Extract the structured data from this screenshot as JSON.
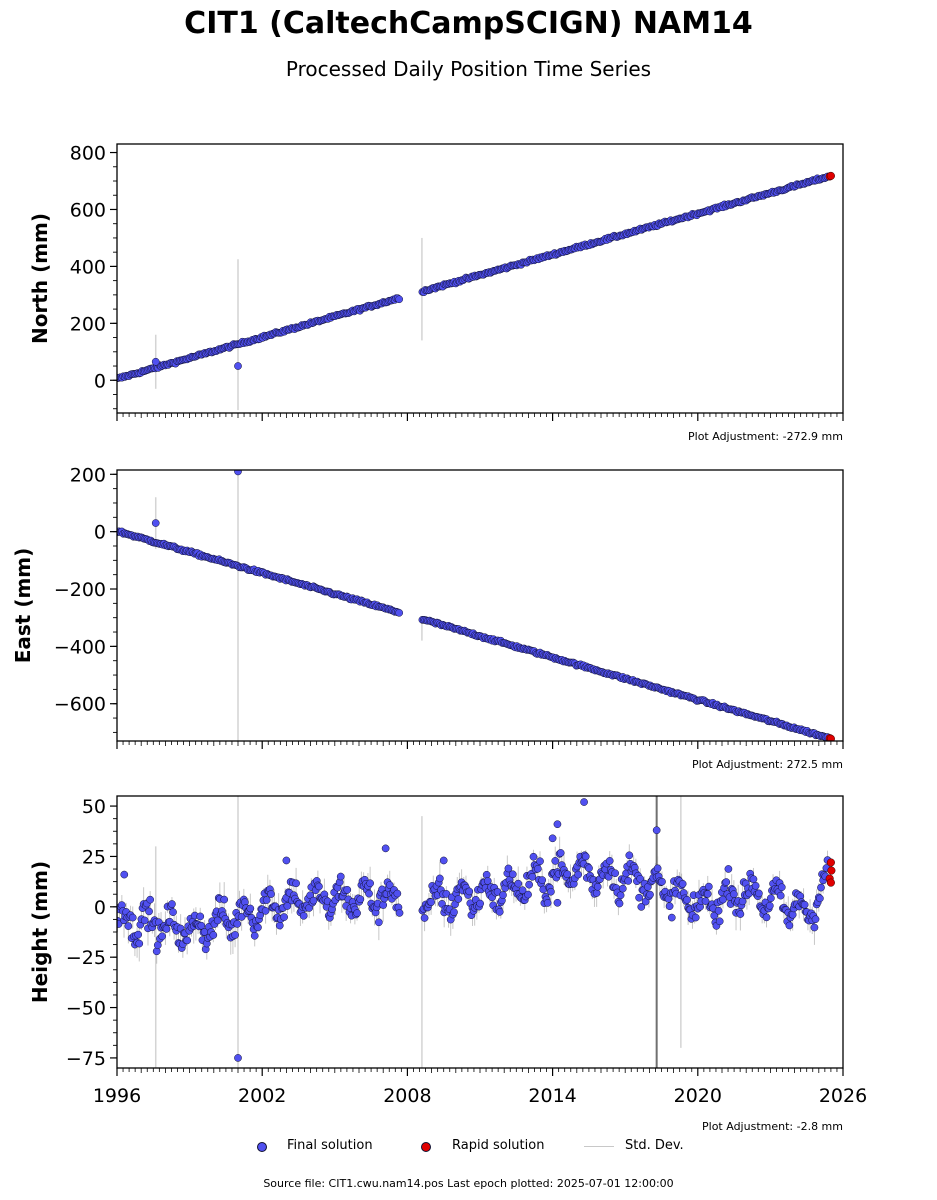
{
  "header": {
    "title": "CIT1 (CaltechCampSCIGN) NAM14",
    "subtitle": "Processed Daily Position Time Series"
  },
  "legend": {
    "final_label": "Final solution",
    "rapid_label": "Rapid solution",
    "stddev_label": "Std. Dev."
  },
  "footer": {
    "source": "Source file: CIT1.cwu.nam14.pos  Last epoch plotted: 2025-07-01 12:00:00"
  },
  "colors": {
    "final": "#5050f0",
    "rapid": "#e00000",
    "stddev": "#b0b0b0",
    "edge": "#101030"
  },
  "chart_data": [
    {
      "type": "scatter",
      "panel": "north",
      "ylabel": "North (mm)",
      "adjustment": "Plot Adjustment: -272.9 mm",
      "xlim": [
        1996,
        2026
      ],
      "ylim": [
        -115,
        830
      ],
      "yticks": [
        0,
        200,
        400,
        600,
        800
      ],
      "ytick_labels": [
        "0",
        "200",
        "400",
        "600",
        "800"
      ],
      "gap": [
        2007.7,
        2008.6
      ],
      "trend": [
        [
          1996.0,
          5
        ],
        [
          2007.7,
          290
        ],
        [
          2008.6,
          312
        ],
        [
          2025.5,
          718
        ]
      ],
      "noise_mm": 3,
      "rapid_points": [
        [
          2025.45,
          716
        ],
        [
          2025.5,
          718
        ]
      ],
      "outliers": [
        [
          1997.6,
          65
        ],
        [
          2001.0,
          50
        ]
      ],
      "error_bars": [
        [
          1997.6,
          -30,
          160
        ],
        [
          2001.0,
          -105,
          425
        ],
        [
          2008.6,
          140,
          500
        ]
      ]
    },
    {
      "type": "scatter",
      "panel": "east",
      "ylabel": "East (mm)",
      "adjustment": "Plot Adjustment: 272.5 mm",
      "xlim": [
        1996,
        2026
      ],
      "ylim": [
        -730,
        215
      ],
      "yticks": [
        -600,
        -400,
        -200,
        0,
        200
      ],
      "ytick_labels": [
        "−600",
        "−400",
        "−200",
        "0",
        "200"
      ],
      "gap": [
        2007.7,
        2008.6
      ],
      "trend": [
        [
          1996.0,
          2
        ],
        [
          2007.7,
          -283
        ],
        [
          2008.6,
          -305
        ],
        [
          2025.5,
          -722
        ]
      ],
      "noise_mm": 3,
      "rapid_points": [
        [
          2025.45,
          -720
        ],
        [
          2025.5,
          -722
        ]
      ],
      "outliers": [
        [
          1997.6,
          30
        ],
        [
          2001.0,
          210
        ]
      ],
      "error_bars": [
        [
          1997.6,
          -60,
          120
        ],
        [
          2001.0,
          -730,
          215
        ],
        [
          2008.6,
          -380,
          -300
        ]
      ]
    },
    {
      "type": "scatter",
      "panel": "height",
      "ylabel": "Height (mm)",
      "adjustment": "Plot Adjustment: -2.8 mm",
      "xlim": [
        1996,
        2026
      ],
      "ylim": [
        -80,
        55
      ],
      "yticks": [
        -75,
        -50,
        -25,
        0,
        25,
        50
      ],
      "ytick_labels": [
        "−75",
        "−50",
        "−25",
        "0",
        "25",
        "50"
      ],
      "xticks": [
        1996,
        2002,
        2008,
        2014,
        2020,
        2026
      ],
      "xtick_labels": [
        "1996",
        "2002",
        "2008",
        "2014",
        "2020",
        "2026"
      ],
      "gap": [
        2007.7,
        2008.6
      ],
      "trend": [
        [
          1996.0,
          -5
        ],
        [
          1999.0,
          -12
        ],
        [
          2003.0,
          3
        ],
        [
          2007.7,
          5
        ],
        [
          2008.6,
          2
        ],
        [
          2012.0,
          8
        ],
        [
          2015.0,
          18
        ],
        [
          2018.0,
          12
        ],
        [
          2020.0,
          0
        ],
        [
          2022.0,
          8
        ],
        [
          2024.5,
          -3
        ],
        [
          2025.5,
          15
        ]
      ],
      "noise_mm": 9,
      "rapid_points": [
        [
          2025.45,
          14
        ],
        [
          2025.5,
          22
        ],
        [
          2025.52,
          18
        ],
        [
          2025.5,
          12
        ]
      ],
      "outliers": [
        [
          1996.3,
          16
        ],
        [
          2001.0,
          -75
        ],
        [
          2003.0,
          23
        ],
        [
          2007.1,
          29
        ],
        [
          2009.5,
          23
        ],
        [
          2014.0,
          34
        ],
        [
          2014.2,
          41
        ],
        [
          2015.3,
          52
        ],
        [
          2018.3,
          38
        ],
        [
          2014.2,
          2
        ]
      ],
      "error_bars": [
        [
          1997.6,
          -80,
          30
        ],
        [
          2001.0,
          -80,
          55
        ],
        [
          2008.6,
          -80,
          45
        ],
        [
          2018.3,
          -80,
          55
        ],
        [
          2019.3,
          -70,
          55
        ]
      ]
    }
  ]
}
